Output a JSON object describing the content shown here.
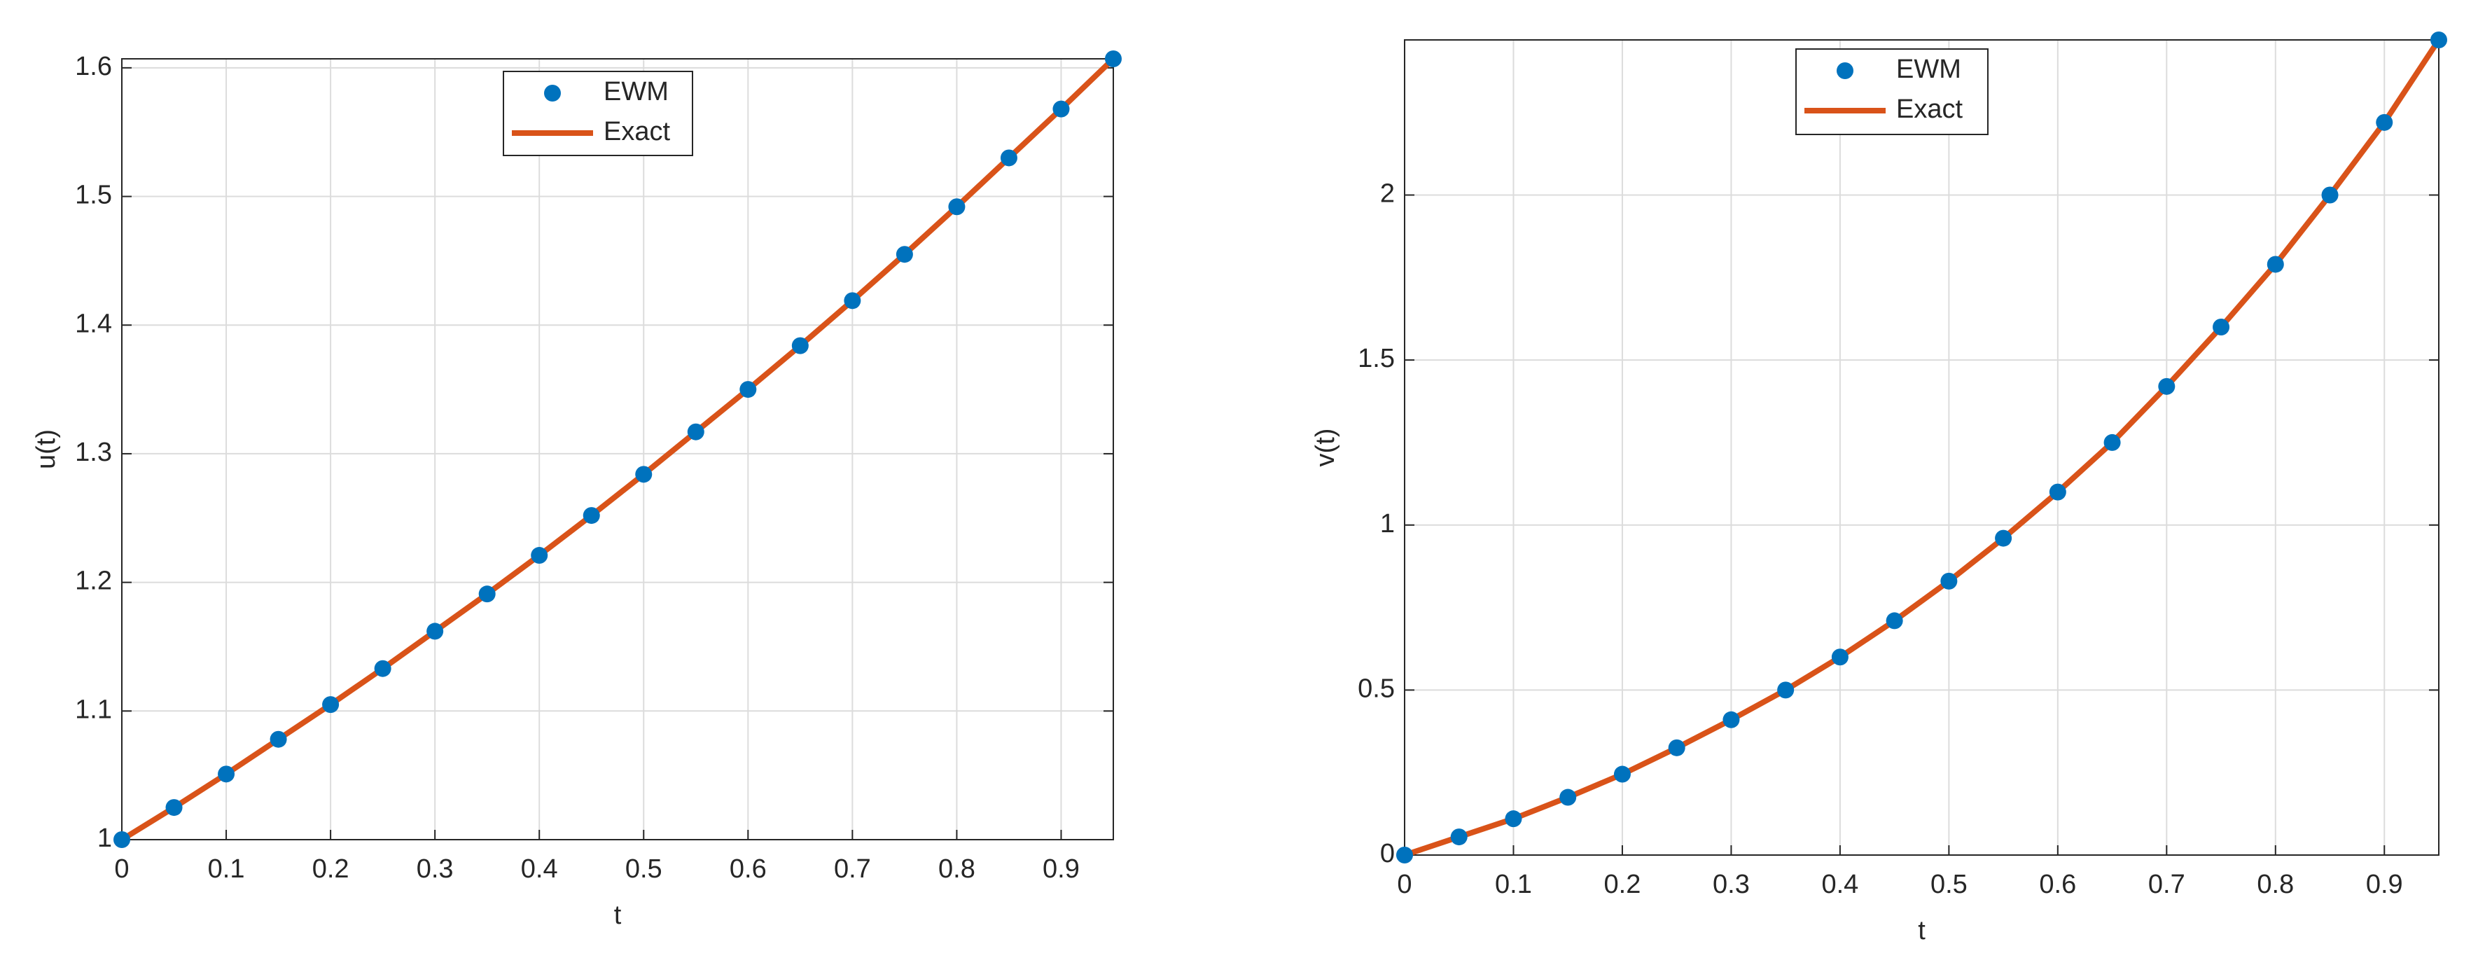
{
  "chart_data": [
    {
      "type": "line",
      "xlabel": "t",
      "ylabel": "u(t)",
      "x": [
        0,
        0.05,
        0.1,
        0.15,
        0.2,
        0.25,
        0.3,
        0.35,
        0.4,
        0.45,
        0.5,
        0.55,
        0.6,
        0.65,
        0.7,
        0.75,
        0.8,
        0.85,
        0.9,
        0.95
      ],
      "series": [
        {
          "name": "EWM",
          "color": "#0072bd",
          "mode": "markers",
          "values": [
            1,
            1.025,
            1.051,
            1.078,
            1.105,
            1.133,
            1.162,
            1.191,
            1.221,
            1.252,
            1.284,
            1.317,
            1.35,
            1.384,
            1.419,
            1.455,
            1.492,
            1.53,
            1.568,
            1.607
          ]
        },
        {
          "name": "Exact",
          "color": "#d95319",
          "mode": "line",
          "values": [
            1,
            1.025,
            1.051,
            1.078,
            1.105,
            1.133,
            1.162,
            1.191,
            1.221,
            1.252,
            1.284,
            1.317,
            1.35,
            1.384,
            1.419,
            1.455,
            1.492,
            1.53,
            1.568,
            1.607
          ]
        }
      ],
      "xlim": [
        0,
        0.95
      ],
      "ylim": [
        1,
        1.607
      ],
      "xticks": [
        0,
        0.1,
        0.2,
        0.3,
        0.4,
        0.5,
        0.6,
        0.7,
        0.8,
        0.9
      ],
      "yticks": [
        1,
        1.1,
        1.2,
        1.3,
        1.4,
        1.5,
        1.6
      ],
      "grid": true,
      "legend": "top"
    },
    {
      "type": "line",
      "xlabel": "t",
      "ylabel": "v(t)",
      "x": [
        0,
        0.05,
        0.1,
        0.15,
        0.2,
        0.25,
        0.3,
        0.35,
        0.4,
        0.45,
        0.5,
        0.55,
        0.6,
        0.65,
        0.7,
        0.75,
        0.8,
        0.85,
        0.9,
        0.95
      ],
      "series": [
        {
          "name": "EWM",
          "color": "#0072bd",
          "mode": "markers",
          "values": [
            0,
            0.055,
            0.11,
            0.175,
            0.245,
            0.325,
            0.41,
            0.5,
            0.6,
            0.71,
            0.83,
            0.96,
            1.1,
            1.25,
            1.42,
            1.6,
            1.79,
            2.0,
            2.22,
            2.47
          ]
        },
        {
          "name": "Exact",
          "color": "#d95319",
          "mode": "line",
          "values": [
            0,
            0.055,
            0.11,
            0.175,
            0.245,
            0.325,
            0.41,
            0.5,
            0.6,
            0.71,
            0.83,
            0.96,
            1.1,
            1.25,
            1.42,
            1.6,
            1.79,
            2.0,
            2.22,
            2.47
          ]
        }
      ],
      "xlim": [
        0,
        0.95
      ],
      "ylim": [
        0,
        2.47
      ],
      "xticks": [
        0,
        0.1,
        0.2,
        0.3,
        0.4,
        0.5,
        0.6,
        0.7,
        0.8,
        0.9
      ],
      "yticks": [
        0,
        0.5,
        1,
        1.5,
        2
      ],
      "grid": true,
      "legend": "top"
    }
  ]
}
